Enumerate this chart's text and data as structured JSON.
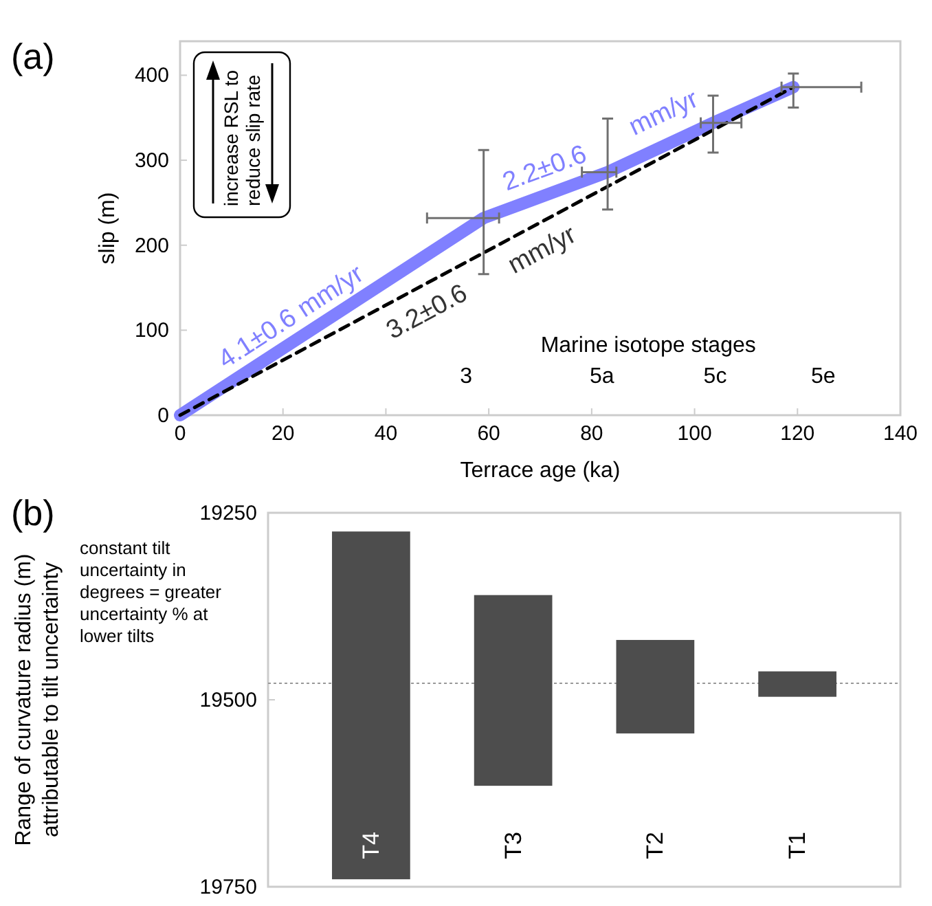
{
  "chart_data": [
    {
      "type": "line",
      "title": "(a)",
      "xlabel": "Terrace age (ka)",
      "ylabel": "slip (m)",
      "xlim": [
        0,
        140
      ],
      "xticks": [
        0,
        20,
        40,
        60,
        80,
        100,
        120,
        140
      ],
      "ylim": [
        0,
        440
      ],
      "yticks": [
        0,
        100,
        200,
        300,
        400
      ],
      "series": [
        {
          "color": "#8080ff",
          "x": [
            0,
            59,
            83.1,
            103.6,
            119.2
          ],
          "values": [
            0,
            232,
            286,
            344,
            386
          ],
          "errors": [
            null,
            [
              166,
              312
            ],
            [
              242,
              349
            ],
            [
              309,
              376
            ],
            [
              362,
              402
            ]
          ],
          "xerrors": [
            null,
            [
              48,
              62
            ],
            [
              78.1,
              84.8
            ],
            [
              101.2,
              109.1
            ],
            [
              116.9,
              132.4
            ]
          ]
        },
        {
          "color": "#000000",
          "line_style": "dashed",
          "x": [
            0,
            119.2
          ],
          "values": [
            0,
            386
          ]
        }
      ],
      "annotations": [
        "increase RSL to reduce slip rate",
        "4.1±0.6 mm/yr",
        "2.2±0.6",
        "mm/yr",
        "3.2±0.6",
        "mm/yr",
        "Marine isotope stages",
        "3",
        "5a",
        "5c",
        "5e"
      ]
    },
    {
      "type": "bar",
      "title": "(b)",
      "ylabel": "Range of curvature radius (m) attributable to tilt uncertainty",
      "categories": [
        "T4",
        "T3",
        "T2",
        "T1"
      ],
      "base": [
        19275,
        19360,
        19420,
        19462
      ],
      "values": [
        465,
        255,
        125,
        34
      ],
      "colors": [
        "#4d4d4d",
        "#4d4d4d",
        "#4d4d4d",
        "#4d4d4d"
      ],
      "ylim": [
        19750,
        19250
      ],
      "yticks": [
        19250,
        19500,
        19750
      ],
      "ref_lines": [
        {
          "axis": "y",
          "value": 19478,
          "color": "#999999",
          "line_style": "dotted"
        }
      ],
      "annotations": [
        "constant tilt uncertainty in degrees = greater uncertainty % at lower tilts"
      ]
    }
  ]
}
